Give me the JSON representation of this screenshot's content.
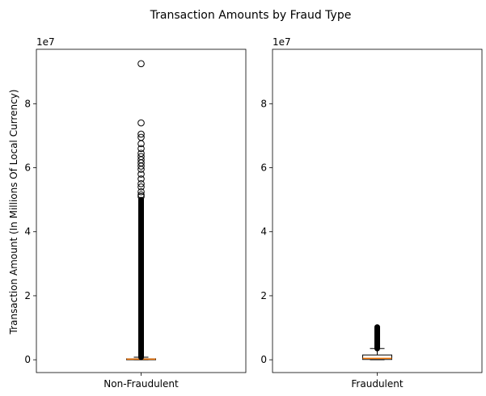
{
  "figure": {
    "title": "Transaction Amounts by Fraud Type",
    "ylabel": "Transaction Amount (In Millions Of Local Currency)"
  },
  "chart_data": [
    {
      "type": "box",
      "category": "Non-Fraudulent",
      "offset_text": "1e7",
      "ylim": [
        -0.4,
        9.7
      ],
      "yticks": [
        0,
        2,
        4,
        6,
        8
      ],
      "box": {
        "whisker_low": 0.0,
        "q1": 0.0,
        "median": 0.02,
        "q3": 0.03,
        "whisker_high": 0.08
      },
      "outlier_range": [
        0.08,
        5.0
      ],
      "outliers": [
        5.1,
        5.15,
        5.25,
        5.4,
        5.5,
        5.65,
        5.8,
        5.95,
        6.05,
        6.15,
        6.25,
        6.35,
        6.45,
        6.6,
        6.75,
        6.95,
        7.05,
        7.4,
        9.25
      ],
      "colors": {
        "box": "#000000",
        "median": "#ff7f0e"
      }
    },
    {
      "type": "box",
      "category": "Fraudulent",
      "offset_text": "1e7",
      "ylim": [
        -0.4,
        9.7
      ],
      "yticks": [
        0,
        2,
        4,
        6,
        8
      ],
      "box": {
        "whisker_low": 0.0,
        "q1": 0.01,
        "median": 0.045,
        "q3": 0.15,
        "whisker_high": 0.35
      },
      "outlier_range": [
        0.35,
        1.02
      ],
      "outliers": [],
      "colors": {
        "box": "#000000",
        "median": "#ff7f0e"
      }
    }
  ]
}
